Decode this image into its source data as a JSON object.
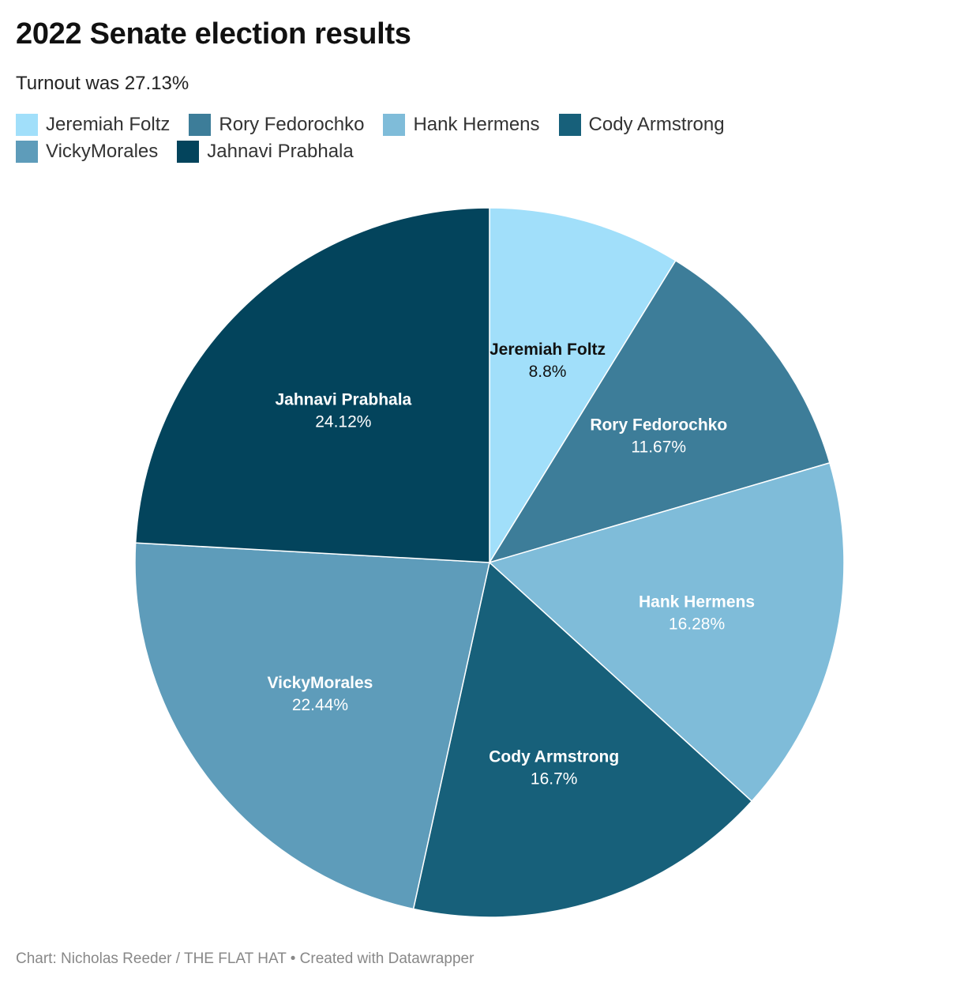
{
  "title": "2022 Senate election results",
  "subtitle": "Turnout was 27.13%",
  "footer": "Chart: Nicholas Reeder / THE FLAT HAT • Created with Datawrapper",
  "chart_data": {
    "type": "pie",
    "title": "2022 Senate election results",
    "subtitle": "Turnout was 27.13%",
    "legend_position": "top",
    "start_angle": "12 o'clock, clockwise",
    "unit": "%",
    "slices": [
      {
        "label": "Jeremiah Foltz",
        "value": 8.8,
        "value_label": "8.8%",
        "color": "#a1dffa",
        "text_color": "#111111"
      },
      {
        "label": "Rory Fedorochko",
        "value": 11.67,
        "value_label": "11.67%",
        "color": "#3d7d99",
        "text_color": "#ffffff"
      },
      {
        "label": "Hank Hermens",
        "value": 16.28,
        "value_label": "16.28%",
        "color": "#7fbcd9",
        "text_color": "#ffffff"
      },
      {
        "label": "Cody Armstrong",
        "value": 16.7,
        "value_label": "16.7%",
        "color": "#17607a",
        "text_color": "#ffffff"
      },
      {
        "label": "VickyMorales",
        "value": 22.44,
        "value_label": "22.44%",
        "color": "#5e9cba",
        "text_color": "#ffffff"
      },
      {
        "label": "Jahnavi Prabhala",
        "value": 24.12,
        "value_label": "24.12%",
        "color": "#03445c",
        "text_color": "#ffffff"
      }
    ]
  }
}
